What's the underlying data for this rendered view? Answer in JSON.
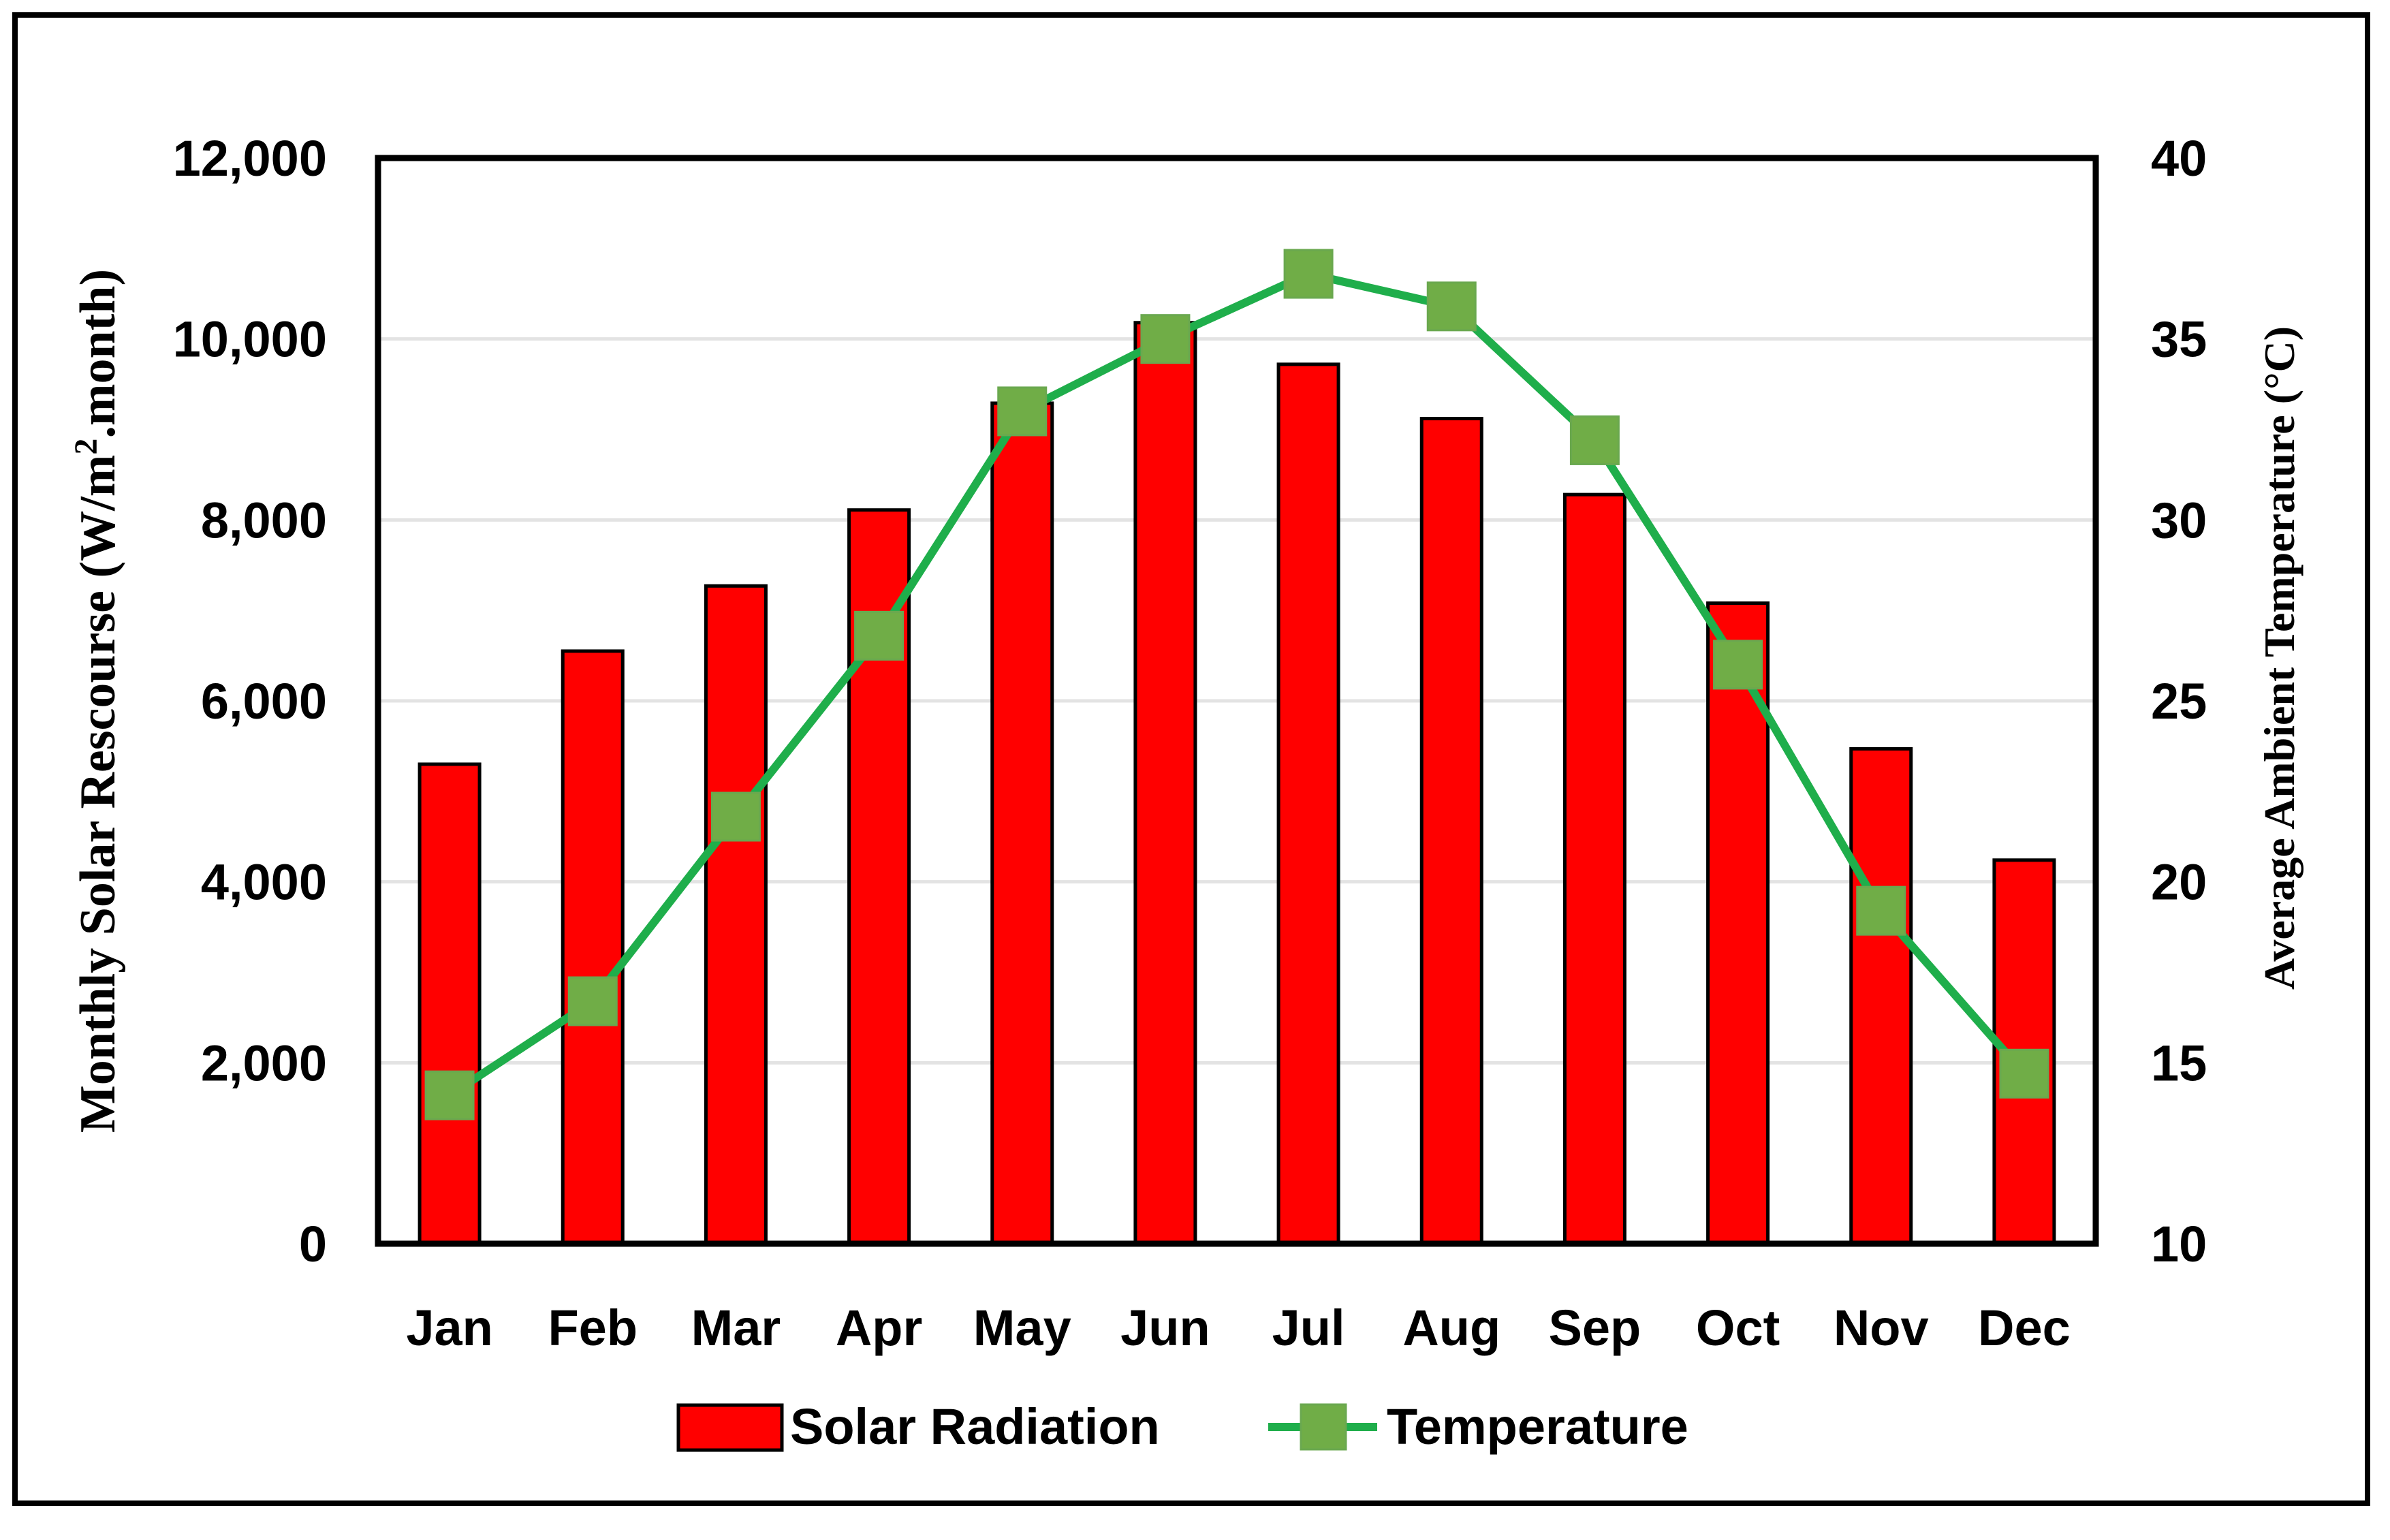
{
  "chart_data": {
    "type": "bar+line",
    "categories": [
      "Jan",
      "Feb",
      "Mar",
      "Apr",
      "May",
      "Jun",
      "Jul",
      "Aug",
      "Sep",
      "Oct",
      "Nov",
      "Dec"
    ],
    "series": [
      {
        "name": "Solar Radiation",
        "type": "bar",
        "axis": "left",
        "color": "#ff0000",
        "values": [
          5300,
          6550,
          7270,
          8110,
          9290,
          10180,
          9720,
          9120,
          8280,
          7080,
          5470,
          4240
        ]
      },
      {
        "name": "Temperature",
        "type": "line",
        "axis": "right",
        "color": "#1fae4b",
        "marker_color": "#70ad47",
        "values": [
          14.1,
          16.7,
          21.8,
          26.8,
          33.0,
          35.0,
          36.8,
          35.9,
          32.2,
          26.0,
          19.2,
          14.7
        ]
      }
    ],
    "ylabel_left": {
      "main": "Monthly Solar Rescourse (W/m",
      "sup": "2",
      "tail": ".month)"
    },
    "ylabel_right": "Average Ambient Temperature (°C)",
    "ylim_left": [
      0,
      12000
    ],
    "ylim_right": [
      10,
      40
    ],
    "yticks_left": [
      "0",
      "2,000",
      "4,000",
      "6,000",
      "8,000",
      "10,000",
      "12,000"
    ],
    "yticks_right": [
      "10",
      "15",
      "20",
      "25",
      "30",
      "35",
      "40"
    ],
    "grid": true,
    "legend_position": "bottom"
  }
}
